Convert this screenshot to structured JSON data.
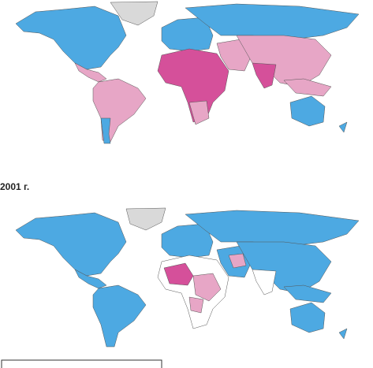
{
  "label": "2001 г."
}
